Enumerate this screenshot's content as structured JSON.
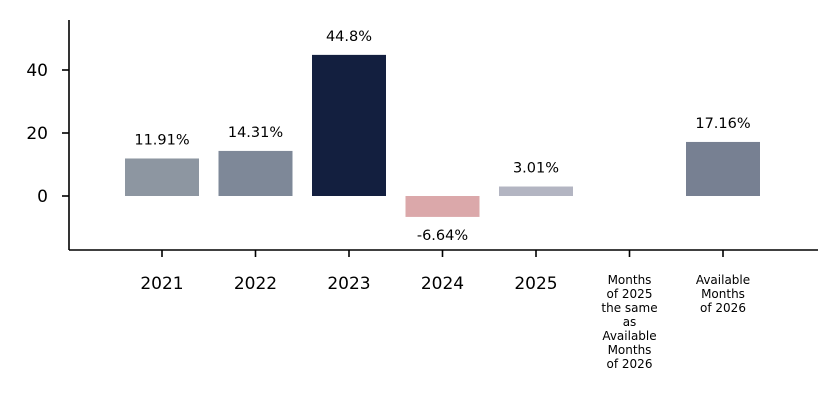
{
  "chart_data": {
    "type": "bar",
    "categories": [
      "2021",
      "2022",
      "2023",
      "2024",
      "2025",
      "Months\nof 2025\nthe same\nas\nAvailable\nMonths\nof 2026",
      "Available\nMonths\nof 2026"
    ],
    "values": [
      11.91,
      14.31,
      44.8,
      -6.64,
      3.01,
      null,
      17.16
    ],
    "data_labels": [
      "11.91%",
      "14.31%",
      "44.8%",
      "-6.64%",
      "3.01%",
      "",
      "17.16%"
    ],
    "colors": [
      "#8d96a1",
      "#7e8898",
      "#131f3f",
      "#dba8aa",
      "#b3b5c2",
      "#ffffff",
      "#778092"
    ],
    "yticks": [
      0,
      20,
      40
    ],
    "ylim": [
      -17,
      55
    ],
    "grid": false,
    "title": "",
    "xlabel": "",
    "ylabel": ""
  }
}
